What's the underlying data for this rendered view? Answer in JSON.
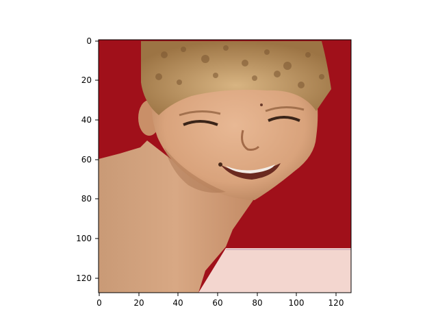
{
  "figure": {
    "image_subject": "smiling boy with curly blond hair in front of a red background",
    "colors": {
      "background_red": "#a0101a",
      "skin": "#d9a77e",
      "hair": "#c8a070",
      "shadow": "#8a5a3a",
      "floor_pink": "#f4d8d2",
      "axes": "#000000"
    }
  },
  "axes": {
    "x_ticks": [
      "0",
      "20",
      "40",
      "60",
      "80",
      "100",
      "120"
    ],
    "y_ticks": [
      "0",
      "20",
      "40",
      "60",
      "80",
      "100",
      "120"
    ],
    "xlim": [
      -0.5,
      127.5
    ],
    "ylim": [
      127.5,
      -0.5
    ]
  }
}
